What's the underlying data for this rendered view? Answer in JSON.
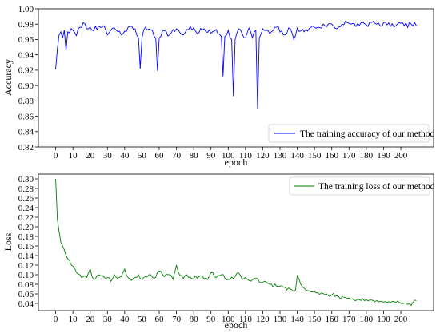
{
  "chart_data": [
    {
      "type": "line",
      "xlabel": "epoch",
      "ylabel": "Accuracy",
      "xlim": [
        -10,
        219
      ],
      "ylim": [
        0.82,
        1.0
      ],
      "xticks": [
        0,
        10,
        20,
        30,
        40,
        50,
        60,
        70,
        80,
        90,
        100,
        110,
        120,
        130,
        140,
        150,
        160,
        170,
        180,
        190,
        200
      ],
      "xtick_labels": [
        "0",
        "10",
        "20",
        "30",
        "40",
        "50",
        "60",
        "70",
        "80",
        "90",
        "100",
        "110",
        "120",
        "130",
        "140",
        "150",
        "160",
        "170",
        "180",
        "190",
        "200"
      ],
      "yticks": [
        0.82,
        0.84,
        0.86,
        0.88,
        0.9,
        0.92,
        0.94,
        0.96,
        0.98,
        1.0
      ],
      "ytick_labels": [
        "0.82",
        "0.84",
        "0.86",
        "0.88",
        "0.90",
        "0.92",
        "0.94",
        "0.96",
        "0.98",
        "1.00"
      ],
      "legend_position": "lower right",
      "grid": false,
      "series": [
        {
          "name": "The training accuracy of our method",
          "color": "#0000ff",
          "anchors": [
            [
              0,
              0.921
            ],
            [
              1,
              0.948
            ],
            [
              2,
              0.966
            ],
            [
              3,
              0.97
            ],
            [
              4,
              0.962
            ],
            [
              5,
              0.972
            ],
            [
              6,
              0.946
            ],
            [
              7,
              0.97
            ],
            [
              10,
              0.972
            ],
            [
              12,
              0.965
            ],
            [
              14,
              0.976
            ],
            [
              16,
              0.982
            ],
            [
              18,
              0.974
            ],
            [
              20,
              0.976
            ],
            [
              24,
              0.973
            ],
            [
              28,
              0.978
            ],
            [
              30,
              0.966
            ],
            [
              34,
              0.975
            ],
            [
              38,
              0.966
            ],
            [
              42,
              0.976
            ],
            [
              46,
              0.974
            ],
            [
              48,
              0.962
            ],
            [
              49,
              0.922
            ],
            [
              50,
              0.962
            ],
            [
              52,
              0.976
            ],
            [
              56,
              0.972
            ],
            [
              58,
              0.962
            ],
            [
              59,
              0.919
            ],
            [
              60,
              0.962
            ],
            [
              62,
              0.972
            ],
            [
              66,
              0.966
            ],
            [
              70,
              0.974
            ],
            [
              74,
              0.966
            ],
            [
              78,
              0.977
            ],
            [
              82,
              0.968
            ],
            [
              86,
              0.974
            ],
            [
              90,
              0.968
            ],
            [
              93,
              0.973
            ],
            [
              96,
              0.964
            ],
            [
              97,
              0.912
            ],
            [
              98,
              0.964
            ],
            [
              100,
              0.972
            ],
            [
              102,
              0.96
            ],
            [
              103,
              0.886
            ],
            [
              104,
              0.96
            ],
            [
              106,
              0.974
            ],
            [
              108,
              0.968
            ],
            [
              110,
              0.962
            ],
            [
              112,
              0.975
            ],
            [
              114,
              0.962
            ],
            [
              116,
              0.972
            ],
            [
              117,
              0.87
            ],
            [
              118,
              0.962
            ],
            [
              120,
              0.974
            ],
            [
              124,
              0.968
            ],
            [
              128,
              0.976
            ],
            [
              132,
              0.966
            ],
            [
              136,
              0.974
            ],
            [
              138,
              0.96
            ],
            [
              140,
              0.975
            ],
            [
              144,
              0.97
            ],
            [
              148,
              0.976
            ],
            [
              152,
              0.976
            ],
            [
              156,
              0.978
            ],
            [
              160,
              0.98
            ],
            [
              163,
              0.974
            ],
            [
              166,
              0.98
            ],
            [
              168,
              0.984
            ],
            [
              171,
              0.98
            ],
            [
              174,
              0.977
            ],
            [
              177,
              0.982
            ],
            [
              180,
              0.979
            ],
            [
              183,
              0.982
            ],
            [
              186,
              0.98
            ],
            [
              188,
              0.978
            ],
            [
              190,
              0.982
            ],
            [
              194,
              0.977
            ],
            [
              198,
              0.98
            ],
            [
              202,
              0.978
            ],
            [
              206,
              0.98
            ],
            [
              209,
              0.978
            ]
          ],
          "noise_amp": 0.0035,
          "seed": 7
        }
      ]
    },
    {
      "type": "line",
      "xlabel": "epoch",
      "ylabel": "Loss",
      "xlim": [
        -10,
        219
      ],
      "ylim": [
        0.025,
        0.31
      ],
      "xticks": [
        0,
        10,
        20,
        30,
        40,
        50,
        60,
        70,
        80,
        90,
        100,
        110,
        120,
        130,
        140,
        150,
        160,
        170,
        180,
        190,
        200
      ],
      "xtick_labels": [
        "0",
        "10",
        "20",
        "30",
        "40",
        "50",
        "60",
        "70",
        "80",
        "90",
        "100",
        "110",
        "120",
        "130",
        "140",
        "150",
        "160",
        "170",
        "180",
        "190",
        "200"
      ],
      "yticks": [
        0.04,
        0.06,
        0.08,
        0.1,
        0.12,
        0.14,
        0.16,
        0.18,
        0.2,
        0.22,
        0.24,
        0.26,
        0.28,
        0.3
      ],
      "ytick_labels": [
        "0.04",
        "0.06",
        "0.08",
        "0.10",
        "0.12",
        "0.14",
        "0.16",
        "0.18",
        "0.20",
        "0.22",
        "0.24",
        "0.26",
        "0.28",
        "0.30"
      ],
      "legend_position": "upper right",
      "grid": false,
      "series": [
        {
          "name": "The training loss of our method",
          "color": "#008000",
          "anchors": [
            [
              0,
              0.3
            ],
            [
              1,
              0.215
            ],
            [
              2,
              0.19
            ],
            [
              3,
              0.168
            ],
            [
              4,
              0.16
            ],
            [
              5,
              0.152
            ],
            [
              6,
              0.14
            ],
            [
              8,
              0.13
            ],
            [
              10,
              0.118
            ],
            [
              12,
              0.105
            ],
            [
              14,
              0.1
            ],
            [
              16,
              0.096
            ],
            [
              18,
              0.094
            ],
            [
              20,
              0.112
            ],
            [
              22,
              0.09
            ],
            [
              25,
              0.1
            ],
            [
              28,
              0.095
            ],
            [
              30,
              0.094
            ],
            [
              32,
              0.086
            ],
            [
              34,
              0.1
            ],
            [
              36,
              0.092
            ],
            [
              38,
              0.096
            ],
            [
              40,
              0.112
            ],
            [
              42,
              0.094
            ],
            [
              44,
              0.088
            ],
            [
              46,
              0.094
            ],
            [
              48,
              0.1
            ],
            [
              50,
              0.09
            ],
            [
              52,
              0.096
            ],
            [
              55,
              0.1
            ],
            [
              57,
              0.092
            ],
            [
              60,
              0.108
            ],
            [
              63,
              0.096
            ],
            [
              66,
              0.1
            ],
            [
              68,
              0.09
            ],
            [
              70,
              0.12
            ],
            [
              72,
              0.098
            ],
            [
              74,
              0.092
            ],
            [
              76,
              0.1
            ],
            [
              80,
              0.092
            ],
            [
              84,
              0.098
            ],
            [
              88,
              0.09
            ],
            [
              90,
              0.104
            ],
            [
              93,
              0.094
            ],
            [
              96,
              0.1
            ],
            [
              100,
              0.09
            ],
            [
              104,
              0.096
            ],
            [
              106,
              0.104
            ],
            [
              108,
              0.09
            ],
            [
              110,
              0.094
            ],
            [
              112,
              0.088
            ],
            [
              116,
              0.092
            ],
            [
              120,
              0.084
            ],
            [
              124,
              0.08
            ],
            [
              128,
              0.076
            ],
            [
              132,
              0.074
            ],
            [
              136,
              0.07
            ],
            [
              139,
              0.068
            ],
            [
              140,
              0.098
            ],
            [
              142,
              0.08
            ],
            [
              145,
              0.068
            ],
            [
              148,
              0.064
            ],
            [
              152,
              0.062
            ],
            [
              156,
              0.058
            ],
            [
              160,
              0.058
            ],
            [
              164,
              0.054
            ],
            [
              168,
              0.052
            ],
            [
              172,
              0.05
            ],
            [
              176,
              0.048
            ],
            [
              180,
              0.048
            ],
            [
              184,
              0.046
            ],
            [
              188,
              0.044
            ],
            [
              192,
              0.042
            ],
            [
              196,
              0.044
            ],
            [
              200,
              0.04
            ],
            [
              204,
              0.038
            ],
            [
              206,
              0.036
            ],
            [
              207,
              0.042
            ],
            [
              209,
              0.046
            ]
          ],
          "noise_amp": 0.004,
          "seed": 19
        }
      ]
    }
  ]
}
